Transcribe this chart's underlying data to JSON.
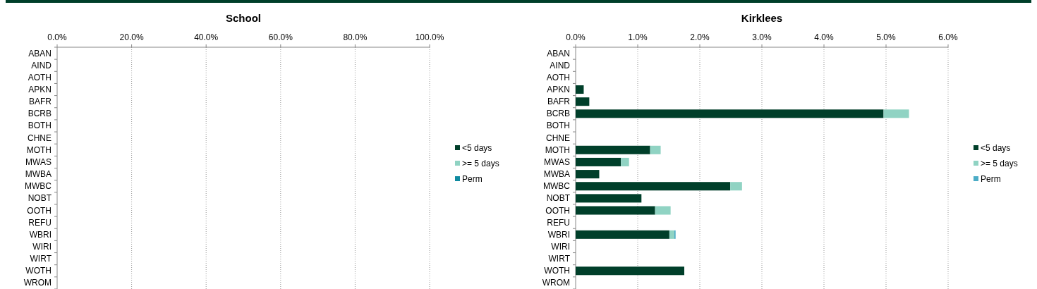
{
  "chart_data": [
    {
      "type": "bar",
      "title": "School",
      "orientation": "horizontal",
      "categories": [
        "ABAN",
        "AIND",
        "AOTH",
        "APKN",
        "BAFR",
        "BCRB",
        "BOTH",
        "CHNE",
        "MOTH",
        "MWAS",
        "MWBA",
        "MWBC",
        "NOBT",
        "OOTH",
        "REFU",
        "WBRI",
        "WIRI",
        "WIRT",
        "WOTH",
        "WROM"
      ],
      "series": [
        {
          "name": "<5 days",
          "color": "#003f2a",
          "values": [
            null,
            null,
            null,
            null,
            null,
            null,
            null,
            null,
            null,
            null,
            null,
            null,
            null,
            null,
            null,
            null,
            null,
            null,
            null,
            null
          ]
        },
        {
          "name": ">= 5 days",
          "color": "#90d3c3",
          "values": [
            null,
            null,
            null,
            null,
            null,
            null,
            null,
            null,
            null,
            null,
            null,
            null,
            null,
            null,
            null,
            null,
            null,
            null,
            null,
            null
          ]
        },
        {
          "name": "Perm",
          "color": "#0f8aa0",
          "values": [
            null,
            null,
            null,
            null,
            null,
            null,
            null,
            null,
            null,
            null,
            null,
            null,
            null,
            null,
            null,
            null,
            null,
            null,
            null,
            null
          ]
        }
      ],
      "xlim": [
        0,
        100
      ],
      "xticks": [
        {
          "value": 0,
          "label": "0.0%"
        },
        {
          "value": 20,
          "label": "20.0%"
        },
        {
          "value": 40,
          "label": "40.0%"
        },
        {
          "value": 60,
          "label": "60.0%"
        },
        {
          "value": 80,
          "label": "80.0%"
        },
        {
          "value": 100,
          "label": "100.0%"
        }
      ],
      "grid": "x",
      "legend": "right"
    },
    {
      "type": "bar",
      "title": "Kirklees",
      "orientation": "horizontal",
      "stacked": true,
      "categories": [
        "ABAN",
        "AIND",
        "AOTH",
        "APKN",
        "BAFR",
        "BCRB",
        "BOTH",
        "CHNE",
        "MOTH",
        "MWAS",
        "MWBA",
        "MWBC",
        "NOBT",
        "OOTH",
        "REFU",
        "WBRI",
        "WIRI",
        "WIRT",
        "WOTH",
        "WROM"
      ],
      "series": [
        {
          "name": "<5 days",
          "color": "#003f2a",
          "values": [
            null,
            null,
            null,
            0.13,
            0.22,
            4.96,
            null,
            null,
            1.2,
            0.73,
            0.38,
            2.49,
            1.06,
            1.28,
            null,
            1.51,
            null,
            null,
            1.75,
            null
          ]
        },
        {
          "name": ">= 5 days",
          "color": "#90d3c3",
          "values": [
            null,
            null,
            null,
            null,
            null,
            0.41,
            null,
            null,
            0.17,
            0.13,
            null,
            0.19,
            null,
            0.25,
            null,
            0.08,
            null,
            null,
            null,
            null
          ]
        },
        {
          "name": "Perm",
          "color": "#4bacc6",
          "values": [
            null,
            null,
            null,
            null,
            null,
            null,
            null,
            null,
            null,
            null,
            null,
            null,
            null,
            null,
            null,
            0.02,
            null,
            null,
            null,
            null
          ]
        }
      ],
      "xlim": [
        0,
        6
      ],
      "xticks": [
        {
          "value": 0,
          "label": "0.0%"
        },
        {
          "value": 1,
          "label": "1.0%"
        },
        {
          "value": 2,
          "label": "2.0%"
        },
        {
          "value": 3,
          "label": "3.0%"
        },
        {
          "value": 4,
          "label": "4.0%"
        },
        {
          "value": 5,
          "label": "5.0%"
        },
        {
          "value": 6,
          "label": "6.0%"
        }
      ],
      "grid": "x",
      "legend": "right"
    }
  ]
}
